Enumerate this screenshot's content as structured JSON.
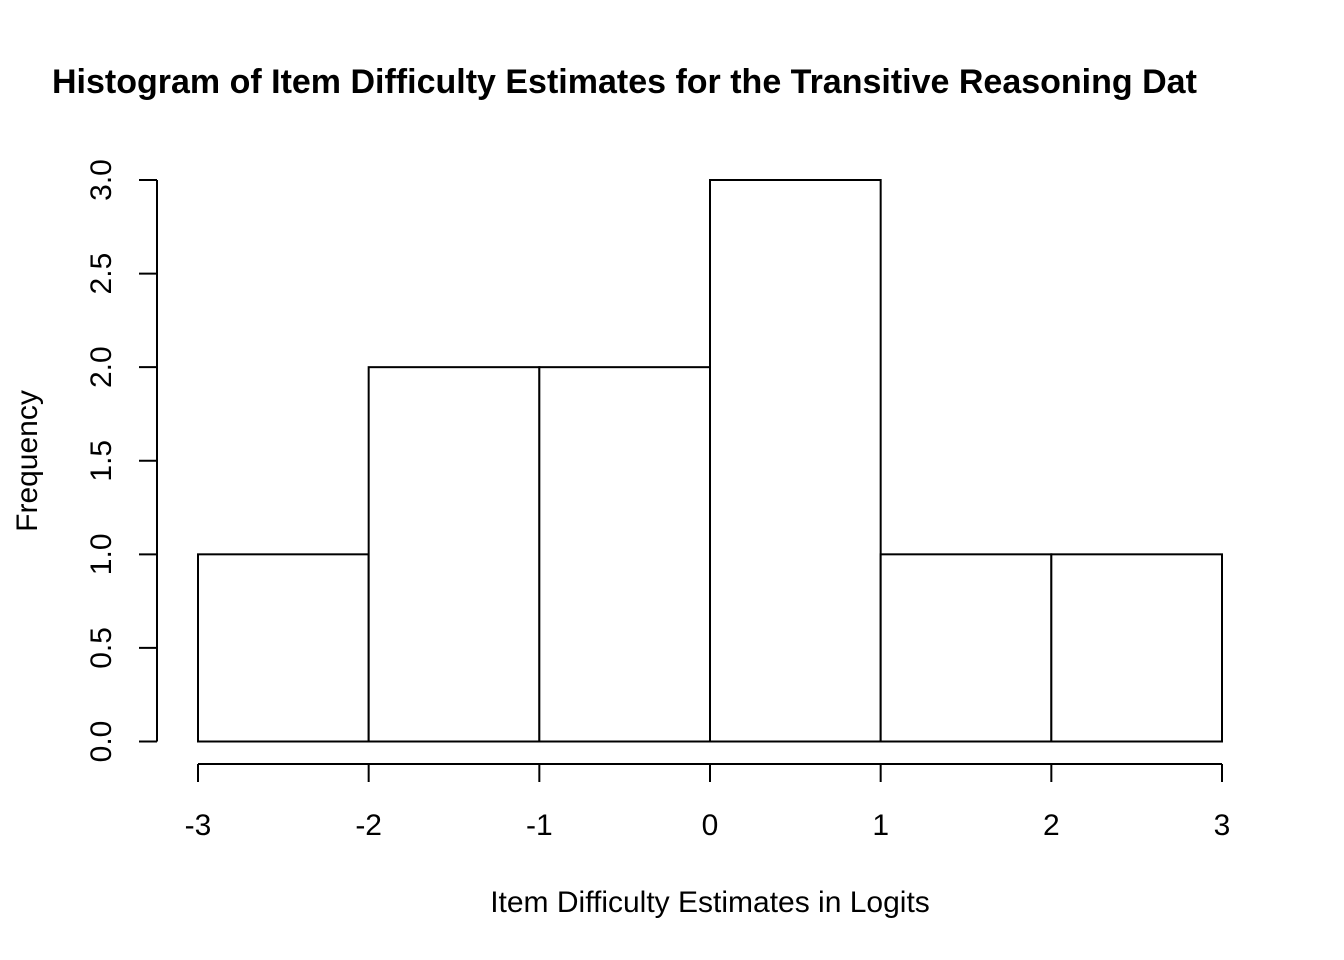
{
  "chart_data": {
    "type": "bar",
    "title": "Histogram of Item Difficulty Estimates for the Transitive Reasoning Dat",
    "xlabel": "Item Difficulty Estimates in Logits",
    "ylabel": "Frequency",
    "bins": [
      {
        "from": -3,
        "to": -2,
        "count": 1
      },
      {
        "from": -2,
        "to": -1,
        "count": 2
      },
      {
        "from": -1,
        "to": 0,
        "count": 2
      },
      {
        "from": 0,
        "to": 1,
        "count": 3
      },
      {
        "from": 1,
        "to": 2,
        "count": 1
      },
      {
        "from": 2,
        "to": 3,
        "count": 1
      }
    ],
    "values": [
      1,
      2,
      2,
      3,
      1,
      1
    ],
    "xlim": [
      -3,
      3
    ],
    "ylim": [
      0,
      3
    ],
    "x_ticks": [
      "-3",
      "-2",
      "-1",
      "0",
      "1",
      "2",
      "3"
    ],
    "y_ticks": [
      "0.0",
      "0.5",
      "1.0",
      "1.5",
      "2.0",
      "2.5",
      "3.0"
    ],
    "grid": false,
    "bar_fill": "#ffffff",
    "bar_stroke": "#000000"
  }
}
